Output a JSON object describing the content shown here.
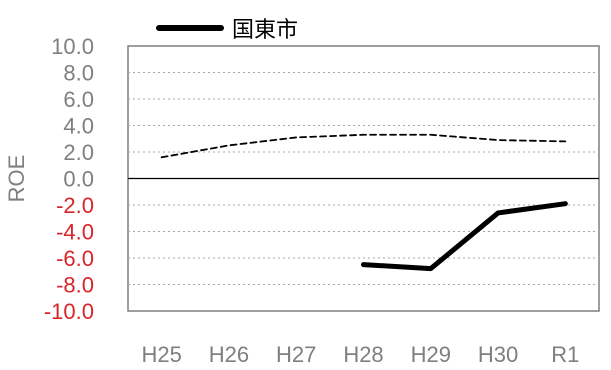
{
  "chart_data": {
    "type": "line",
    "categories": [
      "H25",
      "H26",
      "H27",
      "H28",
      "H29",
      "H30",
      "R1"
    ],
    "ylabel": "ROE",
    "ylim": [
      -10,
      10
    ],
    "yticks": [
      {
        "value": 10,
        "label": "10.0"
      },
      {
        "value": 8,
        "label": "8.0"
      },
      {
        "value": 6,
        "label": "6.0"
      },
      {
        "value": 4,
        "label": "4.0"
      },
      {
        "value": 2,
        "label": "2.0"
      },
      {
        "value": 0,
        "label": "0.0"
      },
      {
        "value": -2,
        "label": "-2.0"
      },
      {
        "value": -4,
        "label": "-4.0"
      },
      {
        "value": -6,
        "label": "-6.0"
      },
      {
        "value": -8,
        "label": "-8.0"
      },
      {
        "value": -10,
        "label": "-10.0"
      }
    ],
    "grid": true,
    "legend_placement": "top-left",
    "series": [
      {
        "name": "国東市",
        "style": "solid",
        "color": "#000000",
        "values": [
          null,
          null,
          null,
          -6.5,
          -6.8,
          -2.6,
          -1.9
        ]
      },
      {
        "style": "dashed",
        "color": "#000000",
        "values": [
          1.6,
          2.5,
          3.1,
          3.3,
          3.3,
          2.9,
          2.8
        ]
      }
    ],
    "colors": {
      "positive_tick": "#7f7f7f",
      "negative_tick": "#d9252a",
      "axis_label": "#7f7f7f",
      "grid": "#a6a6a6",
      "frame": "#7f7f7f"
    }
  }
}
